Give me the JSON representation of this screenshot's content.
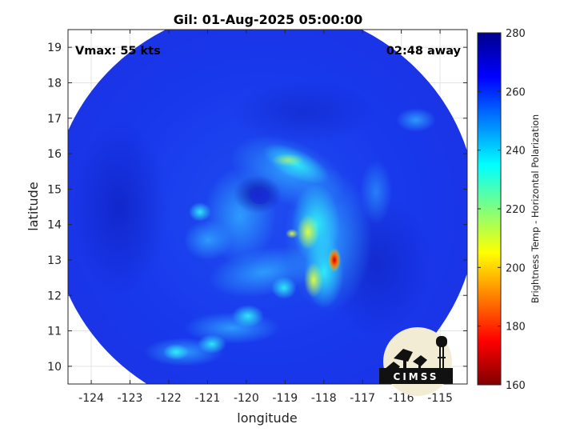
{
  "title": "Gil: 01-Aug-2025 05:00:00",
  "vmax_label": "Vmax: 55 kts",
  "time_away_label": "02:48 away",
  "logo": {
    "text": "CIMSS"
  },
  "chart_data": {
    "type": "heatmap",
    "xlabel": "longitude",
    "ylabel": "latitude",
    "xlim": [
      -124.6,
      -114.3
    ],
    "ylim": [
      9.5,
      19.5
    ],
    "xticks": [
      -124,
      -123,
      -122,
      -121,
      -120,
      -119,
      -118,
      -117,
      -116,
      -115
    ],
    "yticks": [
      10,
      11,
      12,
      13,
      14,
      15,
      16,
      17,
      18,
      19
    ],
    "grid": true,
    "colorbar": {
      "label": "Brightness Temp - Horizontal Polarization",
      "range": [
        160,
        280
      ],
      "ticks": [
        280,
        260,
        240,
        220,
        200,
        180,
        160
      ],
      "colormap": "jet"
    },
    "swath": {
      "center_lon": -119.55,
      "center_lat": 14.35,
      "radius_lon": 5.5,
      "radius_lat": 5.8
    },
    "features": [
      {
        "type": "eye",
        "lon": -119.8,
        "lat": 14.9,
        "value": 260
      },
      {
        "type": "min_temperature",
        "lon": -117.7,
        "lat": 13.0,
        "value": 185
      },
      {
        "type": "band",
        "lon": -118.3,
        "lat": 13.3,
        "value": 215
      },
      {
        "type": "band",
        "lon": -118.8,
        "lat": 15.9,
        "value": 232
      }
    ]
  }
}
